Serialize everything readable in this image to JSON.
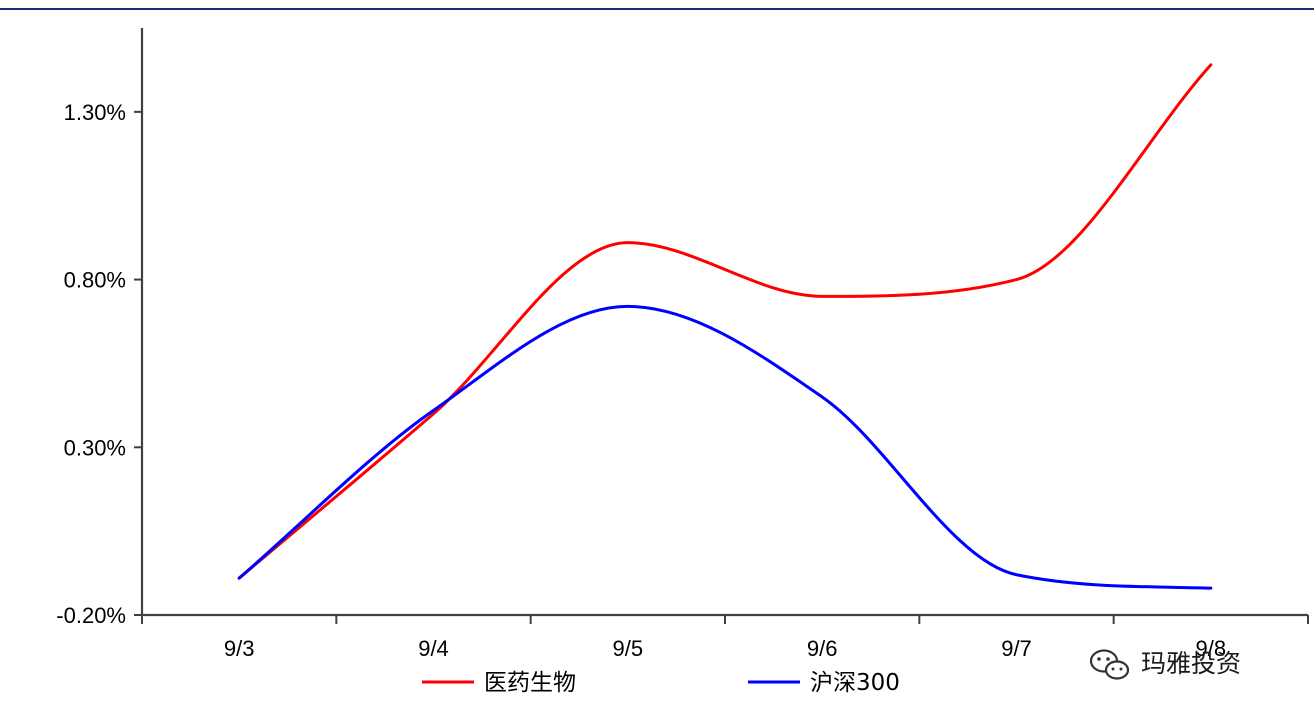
{
  "chart_data": {
    "type": "line",
    "categories": [
      "9/3",
      "9/4",
      "9/5",
      "9/6",
      "9/7",
      "9/8"
    ],
    "series": [
      {
        "name": "医药生物",
        "color": "#ff0000",
        "values": [
          -0.09,
          0.4,
          0.91,
          0.75,
          0.8,
          1.44
        ]
      },
      {
        "name": "沪深300",
        "color": "#0000ff",
        "values": [
          -0.09,
          0.41,
          0.72,
          0.45,
          -0.08,
          -0.12
        ]
      }
    ],
    "yticks": [
      "1.30%",
      "0.80%",
      "0.30%",
      "-0.20%"
    ],
    "ylim": [
      -0.2,
      1.55
    ],
    "grid": false,
    "legend_position": "bottom"
  },
  "watermark": {
    "text": "玛雅投资",
    "icon": "wechat-icon"
  },
  "colors": {
    "header_rule": "#1f2a7a",
    "axis": "#404040"
  }
}
